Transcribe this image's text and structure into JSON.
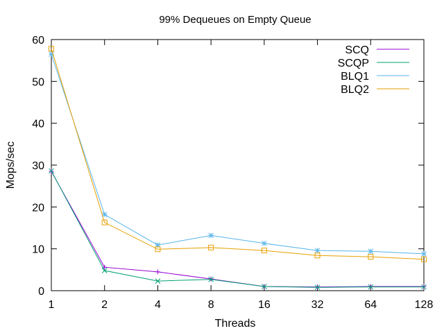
{
  "chart_data": {
    "type": "line",
    "title": "99% Dequeues on Empty Queue",
    "xlabel": "Threads",
    "ylabel": "Mops/sec",
    "x_scale": "log2",
    "x": [
      1,
      2,
      4,
      8,
      16,
      32,
      64,
      128
    ],
    "x_tick_labels": [
      "1",
      "2",
      "4",
      "8",
      "16",
      "32",
      "64",
      "128"
    ],
    "ylim": [
      0,
      60
    ],
    "y_ticks": [
      0,
      10,
      20,
      30,
      40,
      50,
      60
    ],
    "y_tick_labels": [
      "0",
      "10",
      "20",
      "30",
      "40",
      "50",
      "60"
    ],
    "legend_position": "top-right",
    "grid": false,
    "series": [
      {
        "name": "SCQ",
        "color": "#9400d3",
        "marker": "plus",
        "values": [
          28.5,
          5.6,
          4.5,
          2.8,
          1.0,
          0.9,
          1.0,
          1.0
        ]
      },
      {
        "name": "SCQP",
        "color": "#009e73",
        "marker": "cross",
        "values": [
          28.6,
          4.8,
          2.3,
          2.7,
          1.0,
          0.8,
          0.9,
          0.9
        ]
      },
      {
        "name": "BLQ1",
        "color": "#56b4e9",
        "marker": "asterisk",
        "values": [
          56.5,
          18.2,
          10.9,
          13.2,
          11.3,
          9.6,
          9.4,
          8.8
        ]
      },
      {
        "name": "BLQ2",
        "color": "#e69f00",
        "marker": "square",
        "values": [
          57.8,
          16.3,
          9.9,
          10.3,
          9.6,
          8.4,
          8.1,
          7.5
        ]
      }
    ]
  }
}
